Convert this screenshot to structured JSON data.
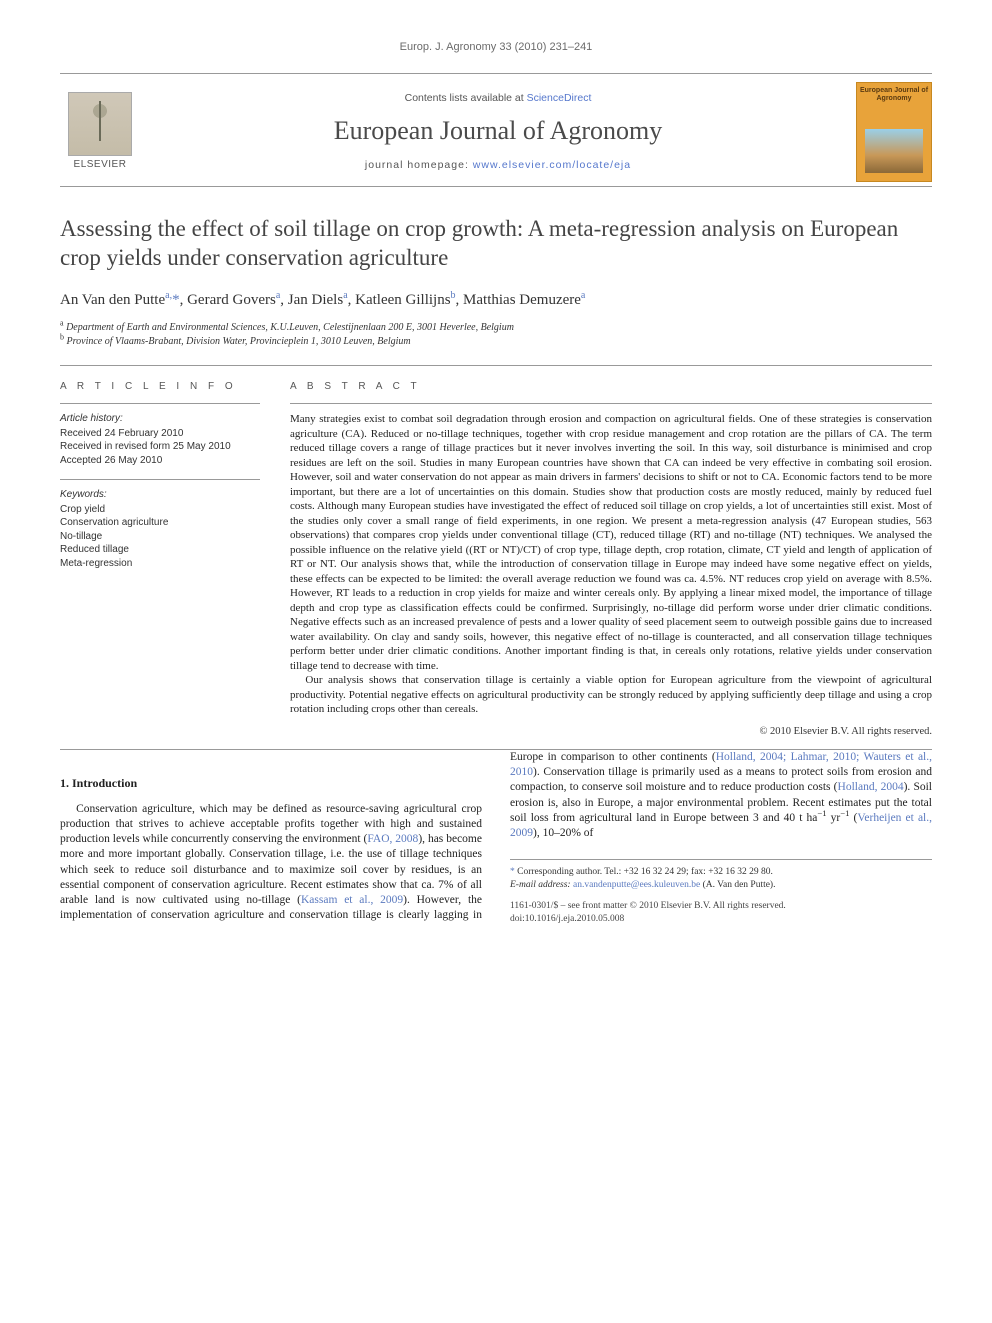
{
  "running_header": "Europ. J. Agronomy 33 (2010) 231–241",
  "masthead": {
    "contents_prefix": "Contents lists available at ",
    "contents_link": "ScienceDirect",
    "journal_title": "European Journal of Agronomy",
    "homepage_prefix": "journal homepage: ",
    "homepage_link": "www.elsevier.com/locate/eja",
    "publisher_label": "ELSEVIER",
    "cover_title": "European Journal of Agronomy"
  },
  "article_title": "Assessing the effect of soil tillage on crop growth: A meta-regression analysis on European crop yields under conservation agriculture",
  "authors_html": "An Van den Putte<sup>a,</sup><span class='star'>*</span>, Gerard Govers<sup>a</sup>, Jan Diels<sup>a</sup>, Katleen Gillijns<sup>b</sup>, Matthias Demuzere<sup>a</sup>",
  "affiliations": [
    {
      "sup": "a",
      "text": "Department of Earth and Environmental Sciences, K.U.Leuven, Celestijnenlaan 200 E, 3001 Heverlee, Belgium"
    },
    {
      "sup": "b",
      "text": "Province of Vlaams-Brabant, Division Water, Provincieplein 1, 3010 Leuven, Belgium"
    }
  ],
  "info": {
    "heading": "A R T I C L E   I N F O",
    "history_label": "Article history:",
    "history": [
      "Received 24 February 2010",
      "Received in revised form 25 May 2010",
      "Accepted 26 May 2010"
    ],
    "keywords_label": "Keywords:",
    "keywords": [
      "Crop yield",
      "Conservation agriculture",
      "No-tillage",
      "Reduced tillage",
      "Meta-regression"
    ]
  },
  "abstract": {
    "heading": "A B S T R A C T",
    "paragraphs": [
      "Many strategies exist to combat soil degradation through erosion and compaction on agricultural fields. One of these strategies is conservation agriculture (CA). Reduced or no-tillage techniques, together with crop residue management and crop rotation are the pillars of CA. The term reduced tillage covers a range of tillage practices but it never involves inverting the soil. In this way, soil disturbance is minimised and crop residues are left on the soil. Studies in many European countries have shown that CA can indeed be very effective in combating soil erosion. However, soil and water conservation do not appear as main drivers in farmers' decisions to shift or not to CA. Economic factors tend to be more important, but there are a lot of uncertainties on this domain. Studies show that production costs are mostly reduced, mainly by reduced fuel costs. Although many European studies have investigated the effect of reduced soil tillage on crop yields, a lot of uncertainties still exist. Most of the studies only cover a small range of field experiments, in one region. We present a meta-regression analysis (47 European studies, 563 observations) that compares crop yields under conventional tillage (CT), reduced tillage (RT) and no-tillage (NT) techniques. We analysed the possible influence on the relative yield ((RT or NT)/CT) of crop type, tillage depth, crop rotation, climate, CT yield and length of application of RT or NT. Our analysis shows that, while the introduction of conservation tillage in Europe may indeed have some negative effect on yields, these effects can be expected to be limited: the overall average reduction we found was ca. 4.5%. NT reduces crop yield on average with 8.5%. However, RT leads to a reduction in crop yields for maize and winter cereals only. By applying a linear mixed model, the importance of tillage depth and crop type as classification effects could be confirmed. Surprisingly, no-tillage did perform worse under drier climatic conditions. Negative effects such as an increased prevalence of pests and a lower quality of seed placement seem to outweigh possible gains due to increased water availability. On clay and sandy soils, however, this negative effect of no-tillage is counteracted, and all conservation tillage techniques perform better under drier climatic conditions. Another important finding is that, in cereals only rotations, relative yields under conservation tillage tend to decrease with time.",
      "Our analysis shows that conservation tillage is certainly a viable option for European agriculture from the viewpoint of agricultural productivity. Potential negative effects on agricultural productivity can be strongly reduced by applying sufficiently deep tillage and using a crop rotation including crops other than cereals."
    ],
    "copyright": "© 2010 Elsevier B.V. All rights reserved."
  },
  "sections": {
    "intro_heading": "1.  Introduction",
    "intro_html": "Conservation agriculture, which may be defined as resource-saving agricultural crop production that strives to achieve acceptable profits together with high and sustained production levels while concurrently conserving the environment (<a>FAO, 2008</a>), has become more and more important globally. Conservation tillage, i.e. the use of tillage techniques which seek to reduce soil disturbance and to maximize soil cover by residues, is an essential component of conservation agriculture. Recent estimates show that ca. 7% of all arable land is now cultivated using no-tillage (<a>Kassam et al., 2009</a>). However, the implementation of conservation agriculture and conservation tillage is clearly lagging in Europe in comparison to other continents (<a>Holland, 2004; Lahmar, 2010; Wauters et al., 2010</a>). Conservation tillage is primarily used as a means to protect soils from erosion and compaction, to conserve soil moisture and to reduce production costs (<a>Holland, 2004</a>). Soil erosion is, also in Europe, a major environmental problem. Recent estimates put the total soil loss from agricultural land in Europe between 3 and 40 t ha<sup>−1</sup> yr<sup>−1</sup> (<a>Verheijen et al., 2009</a>), 10–20% of"
  },
  "footnotes": {
    "corr_label": "Corresponding author. Tel.: +32 16 32 24 29; fax: +32 16 32 29 80.",
    "email_label": "E-mail address:",
    "email": "an.vandenputte@ees.kuleuven.be",
    "email_owner": "(A. Van den Putte)."
  },
  "footer": {
    "line1": "1161-0301/$ – see front matter © 2010 Elsevier B.V. All rights reserved.",
    "line2": "doi:10.1016/j.eja.2010.05.008"
  }
}
